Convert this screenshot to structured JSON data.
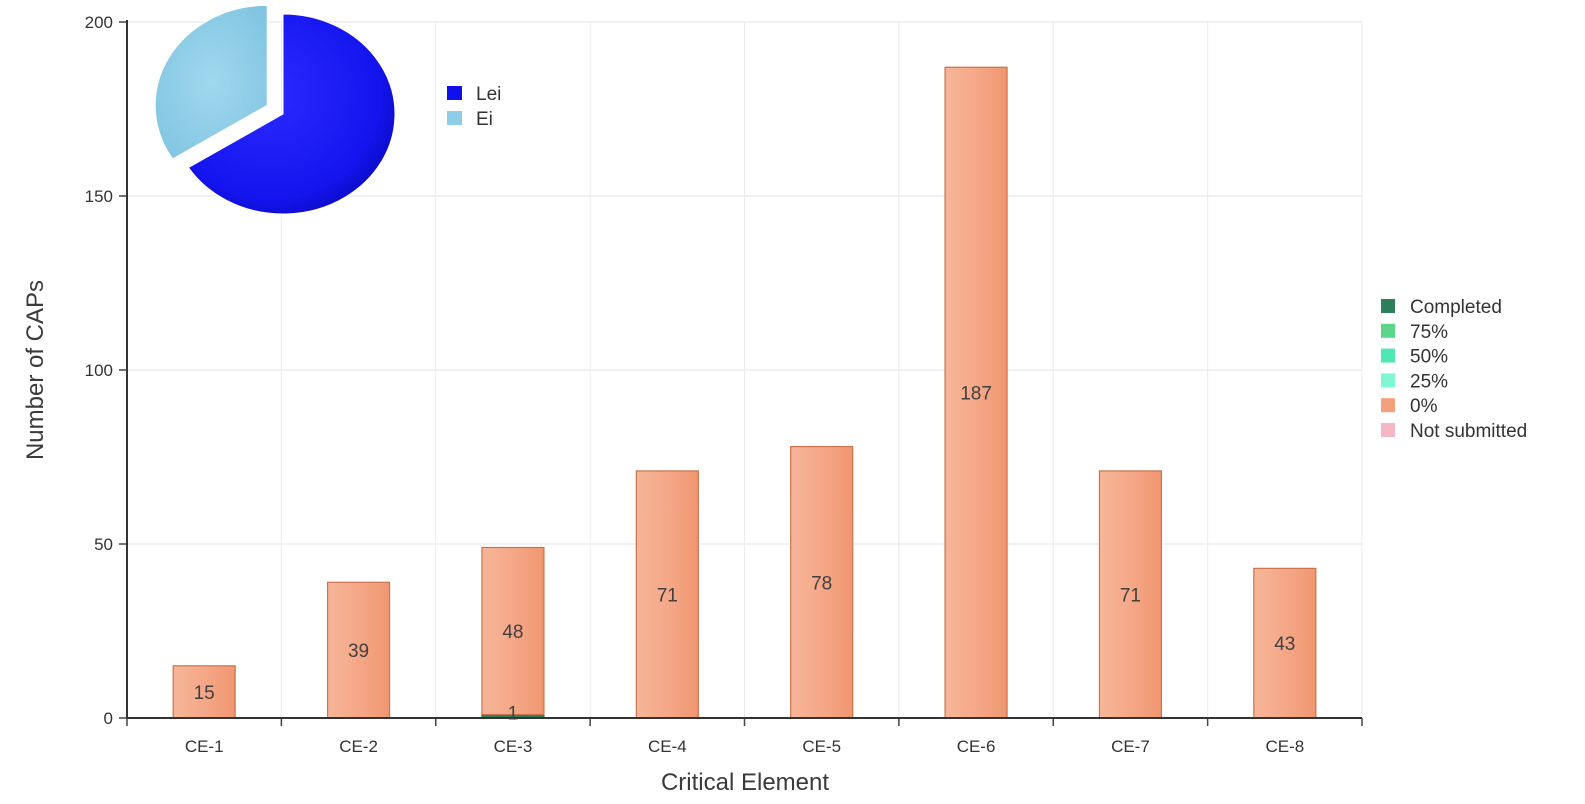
{
  "chart_data": [
    {
      "type": "bar",
      "stacked": true,
      "title": "",
      "xlabel": "Critical Element",
      "ylabel": "Number of CAPs",
      "ylim": [
        0,
        200
      ],
      "yticks": [
        0,
        50,
        100,
        150,
        200
      ],
      "grid": true,
      "legend_position": "right",
      "categories": [
        "CE-1",
        "CE-2",
        "CE-3",
        "CE-4",
        "CE-5",
        "CE-6",
        "CE-7",
        "CE-8"
      ],
      "series": [
        {
          "name": "Completed",
          "color": "#2e7d5b",
          "values": [
            0,
            0,
            1,
            0,
            0,
            0,
            0,
            0
          ]
        },
        {
          "name": "75%",
          "color": "#5bd68a",
          "values": [
            0,
            0,
            0,
            0,
            0,
            0,
            0,
            0
          ]
        },
        {
          "name": "50%",
          "color": "#4de8b5",
          "values": [
            0,
            0,
            0,
            0,
            0,
            0,
            0,
            0
          ]
        },
        {
          "name": "25%",
          "color": "#7ff7d2",
          "values": [
            0,
            0,
            0,
            0,
            0,
            0,
            0,
            0
          ]
        },
        {
          "name": "0%",
          "color": "#f4a07c",
          "values": [
            15,
            39,
            48,
            71,
            78,
            187,
            71,
            43
          ]
        },
        {
          "name": "Not submitted",
          "color": "#f7b6c5",
          "values": [
            0,
            0,
            0,
            0,
            0,
            0,
            0,
            0
          ]
        }
      ],
      "data_labels": [
        {
          "category": "CE-1",
          "series": "0%",
          "text": "15"
        },
        {
          "category": "CE-2",
          "series": "0%",
          "text": "39"
        },
        {
          "category": "CE-3",
          "series": "Completed",
          "text": "1"
        },
        {
          "category": "CE-3",
          "series": "0%",
          "text": "48"
        },
        {
          "category": "CE-4",
          "series": "0%",
          "text": "71"
        },
        {
          "category": "CE-5",
          "series": "0%",
          "text": "78"
        },
        {
          "category": "CE-6",
          "series": "0%",
          "text": "187"
        },
        {
          "category": "CE-7",
          "series": "0%",
          "text": "71"
        },
        {
          "category": "CE-8",
          "series": "0%",
          "text": "43"
        }
      ]
    },
    {
      "type": "pie",
      "title": "",
      "legend_position": "right",
      "slices": [
        {
          "label": "Lei",
          "fraction": 0.66,
          "color": "#1010ee",
          "exploded": false
        },
        {
          "label": "Ei",
          "fraction": 0.34,
          "color": "#8ecde6",
          "exploded": true
        }
      ]
    }
  ]
}
